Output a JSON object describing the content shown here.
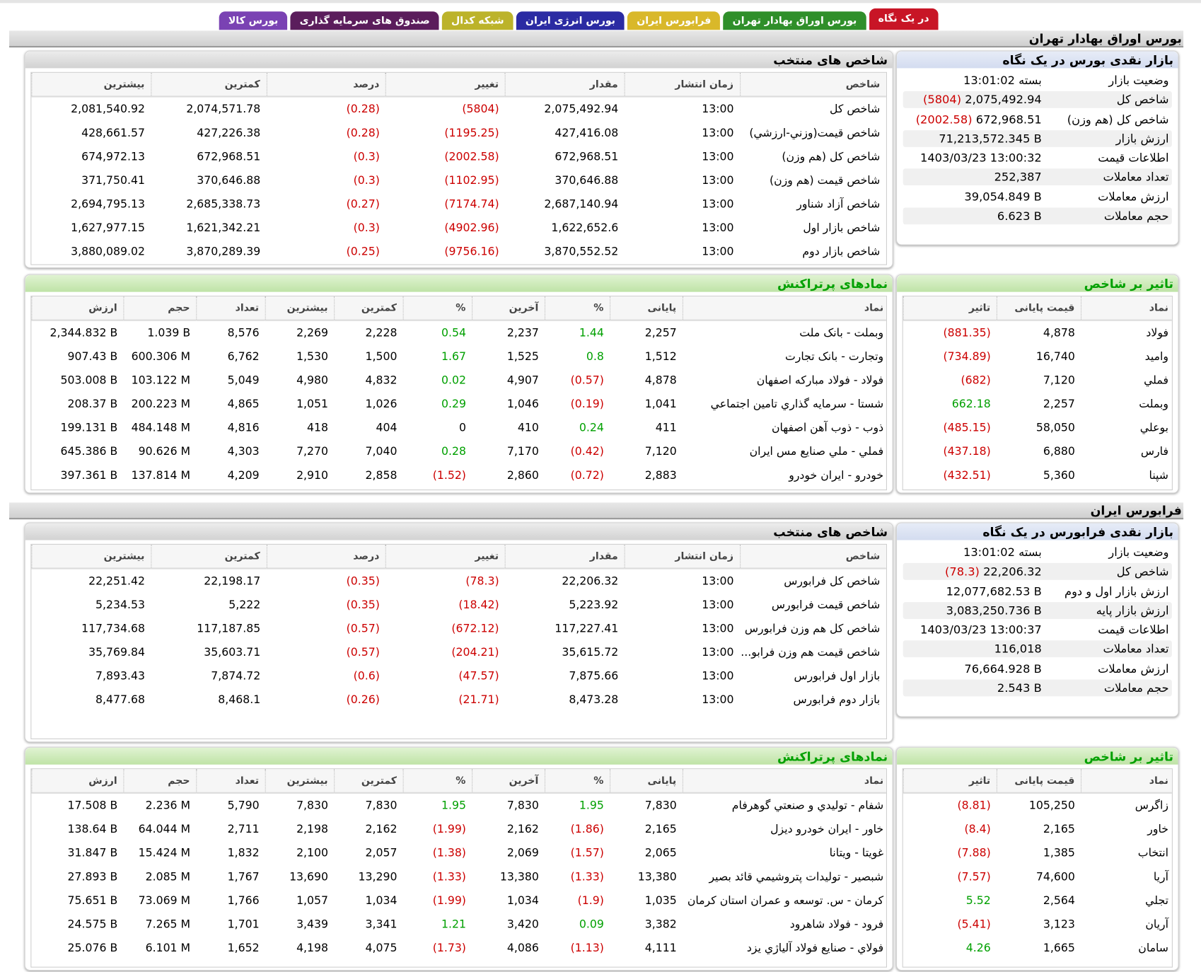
{
  "tabs": [
    {
      "label": "در یک نگاه",
      "color": "#c81526",
      "active": true
    },
    {
      "label": "بورس اوراق بهادار تهران",
      "color": "#2f8f2a"
    },
    {
      "label": "فرابورس ایران",
      "color": "#d9b82a"
    },
    {
      "label": "بورس انرژی ایران",
      "color": "#2b2ba3"
    },
    {
      "label": "شبکه کدال",
      "color": "#bcb32a"
    },
    {
      "label": "صندوق های سرمایه گذاری",
      "color": "#5b1d5c"
    },
    {
      "label": "بورس کالا",
      "color": "#7a42b3"
    }
  ],
  "sections": [
    {
      "title": "بورس اوراق بهادار تهران",
      "summary": {
        "title": "بازار نقدی بورس در یک نگاه",
        "rows": [
          {
            "label": "وضعیت بازار",
            "value": "بسته 13:01:02"
          },
          {
            "label": "شاخص کل",
            "value": "2,075,492.94",
            "change": "(5804)"
          },
          {
            "label": "شاخص کل (هم وزن)",
            "value": "672,968.51",
            "change": "(2002.58)"
          },
          {
            "label": "ارزش بازار",
            "value": "71,213,572.345 B"
          },
          {
            "label": "اطلاعات قیمت",
            "value": "1403/03/23 13:00:32"
          },
          {
            "label": "تعداد معاملات",
            "value": "252,387"
          },
          {
            "label": "ارزش معاملات",
            "value": "39,054.849 B"
          },
          {
            "label": "حجم معاملات",
            "value": "6.623 B"
          }
        ]
      },
      "indices": {
        "title": "شاخص های منتخب",
        "headers": [
          "شاخص",
          "زمان انتشار",
          "مقدار",
          "تغییر",
          "درصد",
          "کمترین",
          "بیشترین"
        ],
        "colored_columns": [
          3,
          4
        ],
        "rows": [
          [
            "شاخص کل",
            "13:00",
            "2,075,492.94",
            "(5804)",
            "(0.28)",
            "2,074,571.78",
            "2,081,540.92"
          ],
          [
            "شاخص قیمت(وزني-ارزشي)",
            "13:00",
            "427,416.08",
            "(1195.25)",
            "(0.28)",
            "427,226.38",
            "428,661.57"
          ],
          [
            "شاخص کل (هم وزن)",
            "13:00",
            "672,968.51",
            "(2002.58)",
            "(0.3)",
            "672,968.51",
            "674,972.13"
          ],
          [
            "شاخص قیمت (هم وزن)",
            "13:00",
            "370,646.88",
            "(1102.95)",
            "(0.3)",
            "370,646.88",
            "371,750.41"
          ],
          [
            "شاخص آزاد شناور",
            "13:00",
            "2,687,140.94",
            "(7174.74)",
            "(0.27)",
            "2,685,338.73",
            "2,694,795.13"
          ],
          [
            "شاخص بازار اول",
            "13:00",
            "1,622,652.6",
            "(4902.96)",
            "(0.3)",
            "1,621,342.21",
            "1,627,977.15"
          ],
          [
            "شاخص بازار دوم",
            "13:00",
            "3,870,552.52",
            "(9756.16)",
            "(0.25)",
            "3,870,289.39",
            "3,880,089.02"
          ]
        ]
      },
      "trades": {
        "title": "نمادهای پرتراکنش",
        "headers": [
          "نماد",
          "پایانی",
          "%",
          "آخرین",
          "%",
          "کمترین",
          "بیشترین",
          "تعداد",
          "حجم",
          "ارزش"
        ],
        "colored_columns": [
          2,
          4
        ],
        "rows": [
          [
            "وبملت - بانک ملت",
            "2,257",
            "1.44",
            "2,237",
            "0.54",
            "2,228",
            "2,269",
            "8,576",
            "1.039 B",
            "2,344.832 B"
          ],
          [
            "وتجارت - بانک تجارت",
            "1,512",
            "0.8",
            "1,525",
            "1.67",
            "1,500",
            "1,530",
            "6,762",
            "600.306 M",
            "907.43 B"
          ],
          [
            "فولاد - فولاد مبارکه اصفهان",
            "4,878",
            "(0.57)",
            "4,907",
            "0.02",
            "4,832",
            "4,980",
            "5,049",
            "103.122 M",
            "503.008 B"
          ],
          [
            "شستا - سرمایه گذاري تامين اجتماعي",
            "1,041",
            "(0.19)",
            "1,046",
            "0.29",
            "1,026",
            "1,051",
            "4,865",
            "200.223 M",
            "208.37 B"
          ],
          [
            "ذوب - ذوب آهن اصفهان",
            "411",
            "0.24",
            "410",
            "0",
            "404",
            "418",
            "4,816",
            "484.148 M",
            "199.131 B"
          ],
          [
            "فملي - ملي صنايع مس ايران",
            "7,120",
            "(0.42)",
            "7,170",
            "0.28",
            "7,040",
            "7,270",
            "4,303",
            "90.626 M",
            "645.386 B"
          ],
          [
            "خودرو - ايران خودرو",
            "2,883",
            "(0.72)",
            "2,860",
            "(1.52)",
            "2,858",
            "2,910",
            "4,209",
            "137.814 M",
            "397.361 B"
          ]
        ]
      },
      "impact": {
        "title": "تاثیر بر شاخص",
        "headers": [
          "نماد",
          "قیمت پایانی",
          "تاثیر"
        ],
        "colored_columns": [
          2
        ],
        "rows": [
          [
            "فولاد",
            "4,878",
            "(881.35)"
          ],
          [
            "وامید",
            "16,740",
            "(734.89)"
          ],
          [
            "فملي",
            "7,120",
            "(682)"
          ],
          [
            "وبملت",
            "2,257",
            "662.18"
          ],
          [
            "بوعلي",
            "58,050",
            "(485.15)"
          ],
          [
            "فارس",
            "6,880",
            "(437.18)"
          ],
          [
            "شپنا",
            "5,360",
            "(432.51)"
          ]
        ]
      }
    },
    {
      "title": "فرابورس ایران",
      "summary": {
        "title": "بازار نقدی فرابورس در یک نگاه",
        "rows": [
          {
            "label": "وضعیت بازار",
            "value": "بسته 13:01:02"
          },
          {
            "label": "شاخص کل",
            "value": "22,206.32",
            "change": "(78.3)"
          },
          {
            "label": "ارزش بازار اول و دوم",
            "value": "12,077,682.53 B"
          },
          {
            "label": "ارزش بازار پایه",
            "value": "3,083,250.736 B"
          },
          {
            "label": "اطلاعات قیمت",
            "value": "1403/03/23 13:00:37"
          },
          {
            "label": "تعداد معاملات",
            "value": "116,018"
          },
          {
            "label": "ارزش معاملات",
            "value": "76,664.928 B"
          },
          {
            "label": "حجم معاملات",
            "value": "2.543 B"
          }
        ]
      },
      "indices": {
        "title": "شاخص های منتخب",
        "headers": [
          "شاخص",
          "زمان انتشار",
          "مقدار",
          "تغییر",
          "درصد",
          "کمترین",
          "بیشترین"
        ],
        "colored_columns": [
          3,
          4
        ],
        "rows": [
          [
            "شاخص کل فرابورس",
            "13:00",
            "22,206.32",
            "(78.3)",
            "(0.35)",
            "22,198.17",
            "22,251.42"
          ],
          [
            "شاخص قیمت فرابورس",
            "13:00",
            "5,223.92",
            "(18.42)",
            "(0.35)",
            "5,222",
            "5,234.53"
          ],
          [
            "شاخص کل هم وزن فرابورس",
            "13:00",
            "117,227.41",
            "(672.12)",
            "(0.57)",
            "117,187.85",
            "117,734.68"
          ],
          [
            "شاخص قیمت هم وزن فرابو...",
            "13:00",
            "35,615.72",
            "(204.21)",
            "(0.57)",
            "35,603.71",
            "35,769.84"
          ],
          [
            "بازار اول فرابورس",
            "13:00",
            "7,875.66",
            "(47.57)",
            "(0.6)",
            "7,874.72",
            "7,893.43"
          ],
          [
            "بازار دوم فرابورس",
            "13:00",
            "8,473.28",
            "(21.71)",
            "(0.26)",
            "8,468.1",
            "8,477.68"
          ]
        ]
      },
      "trades": {
        "title": "نمادهای پرتراکنش",
        "headers": [
          "نماد",
          "پایانی",
          "%",
          "آخرین",
          "%",
          "کمترین",
          "بیشترین",
          "تعداد",
          "حجم",
          "ارزش"
        ],
        "colored_columns": [
          2,
          4
        ],
        "rows": [
          [
            "شفام - توليدي و صنعتي گوهرفام",
            "7,830",
            "1.95",
            "7,830",
            "1.95",
            "7,830",
            "7,830",
            "5,790",
            "2.236 M",
            "17.508 B"
          ],
          [
            "خاور - ايران خودرو ديزل",
            "2,165",
            "(1.86)",
            "2,162",
            "(1.99)",
            "2,162",
            "2,198",
            "2,711",
            "64.044 M",
            "138.64 B"
          ],
          [
            "غويتا - ويتانا",
            "2,065",
            "(1.57)",
            "2,069",
            "(1.38)",
            "2,057",
            "2,100",
            "1,832",
            "15.424 M",
            "31.847 B"
          ],
          [
            "شبصير - توليدات پتروشيمي قائد بصير",
            "13,380",
            "(1.33)",
            "13,380",
            "(1.33)",
            "13,290",
            "13,690",
            "1,767",
            "2.085 M",
            "27.893 B"
          ],
          [
            "كرمان - س. توسعه و عمران استان كرمان",
            "1,035",
            "(1.9)",
            "1,034",
            "(1.99)",
            "1,034",
            "1,057",
            "1,766",
            "73.069 M",
            "75.651 B"
          ],
          [
            "فرود - فولاد شاهرود",
            "3,382",
            "0.09",
            "3,420",
            "1.21",
            "3,341",
            "3,439",
            "1,701",
            "7.265 M",
            "24.575 B"
          ],
          [
            "فولاي - صنايع فولاد آلياژي يزد",
            "4,111",
            "(1.13)",
            "4,086",
            "(1.73)",
            "4,075",
            "4,198",
            "1,652",
            "6.101 M",
            "25.076 B"
          ]
        ]
      },
      "impact": {
        "title": "تاثیر بر شاخص",
        "headers": [
          "نماد",
          "قیمت پایانی",
          "تاثیر"
        ],
        "colored_columns": [
          2
        ],
        "rows": [
          [
            "زاگرس",
            "105,250",
            "(8.81)"
          ],
          [
            "خاور",
            "2,165",
            "(8.4)"
          ],
          [
            "انتخاب",
            "1,385",
            "(7.88)"
          ],
          [
            "آريا",
            "74,600",
            "(7.57)"
          ],
          [
            "تجلي",
            "2,564",
            "5.52"
          ],
          [
            "آريان",
            "3,123",
            "(5.41)"
          ],
          [
            "سامان",
            "1,665",
            "4.26"
          ]
        ]
      }
    }
  ]
}
